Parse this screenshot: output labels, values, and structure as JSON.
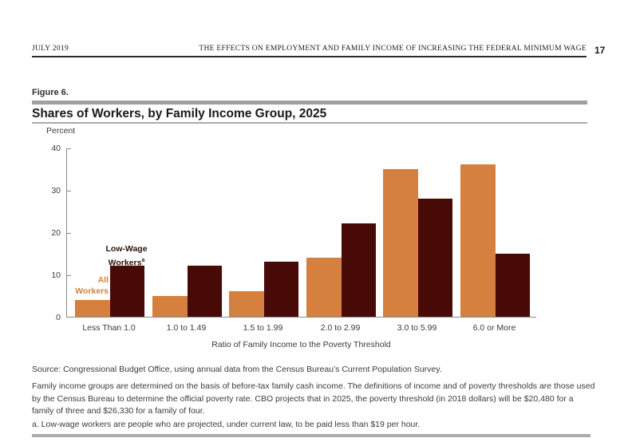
{
  "page_header": {
    "date": "JULY 2019",
    "report_title": "THE EFFECTS ON EMPLOYMENT AND FAMILY INCOME OF INCREASING THE FEDERAL MINIMUM WAGE",
    "page_number": "17"
  },
  "figure": {
    "label": "Figure 6.",
    "title": "Shares of Workers, by Family Income Group, 2025",
    "unit_label": "Percent"
  },
  "chart_data": {
    "type": "bar",
    "title": "Shares of Workers, by Family Income Group, 2025",
    "categories": [
      "Less Than 1.0",
      "1.0 to 1.49",
      "1.5 to 1.99",
      "2.0 to 2.99",
      "3.0 to 5.99",
      "6.0 or More"
    ],
    "series": [
      {
        "name": "All Workers",
        "color": "#d5803f",
        "values": [
          4,
          5,
          6,
          14,
          35,
          36
        ]
      },
      {
        "name": "Low-Wage Workers",
        "color": "#470a07",
        "values": [
          12,
          12,
          13,
          22,
          28,
          15
        ]
      }
    ],
    "xlabel": "Ratio of Family Income to the Poverty Threshold",
    "ylabel": "Percent",
    "ylim": [
      0,
      40
    ],
    "yticks": [
      0,
      10,
      20,
      30,
      40
    ],
    "grid": false,
    "legend_position": "in-plot annotations above first group of bars"
  },
  "annotations": {
    "all_workers_line1": "All",
    "all_workers_line2": "Workers",
    "low_wage_line1": "Low-Wage",
    "low_wage_line2": "Workers",
    "low_wage_superscript": "a"
  },
  "footer": {
    "source": "Source: Congressional Budget Office, using annual data from the Census Bureau’s Current Population Survey.",
    "notes": "Family income groups are determined on the basis of before-tax family cash income. The definitions of income and of poverty thresholds are those used by the Census Bureau to determine the official poverty rate. CBO projects that in 2025, the poverty threshold (in 2018 dollars) will be $20,480 for a family of three and $26,330 for a family of four.",
    "footnote": "a. Low-wage workers are people who are projected, under current law, to be paid less than $19 per hour."
  }
}
